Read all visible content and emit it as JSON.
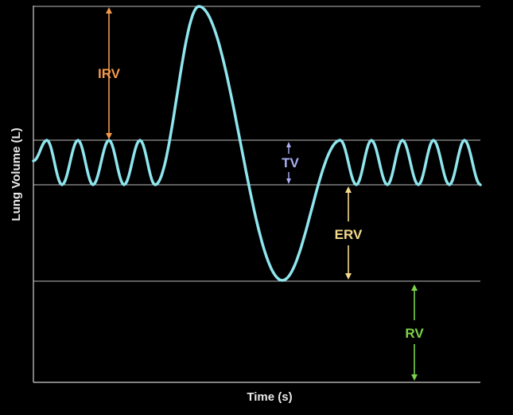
{
  "axes": {
    "y_label": "Lung Volume (L)",
    "x_label": "Time (s)"
  },
  "labels": {
    "irv": "IRV",
    "tv": "TV",
    "erv": "ERV",
    "rv": "RV"
  },
  "colors": {
    "background": "#000000",
    "curve": "#8fe6ee",
    "axis": "#d0d0d0",
    "reference_lines": "#bdbdbd",
    "irv": "#f2994a",
    "tv": "#a8aef2",
    "erv": "#f5d98b",
    "rv": "#7cd24b",
    "axis_text": "#e8e8e8"
  }
}
